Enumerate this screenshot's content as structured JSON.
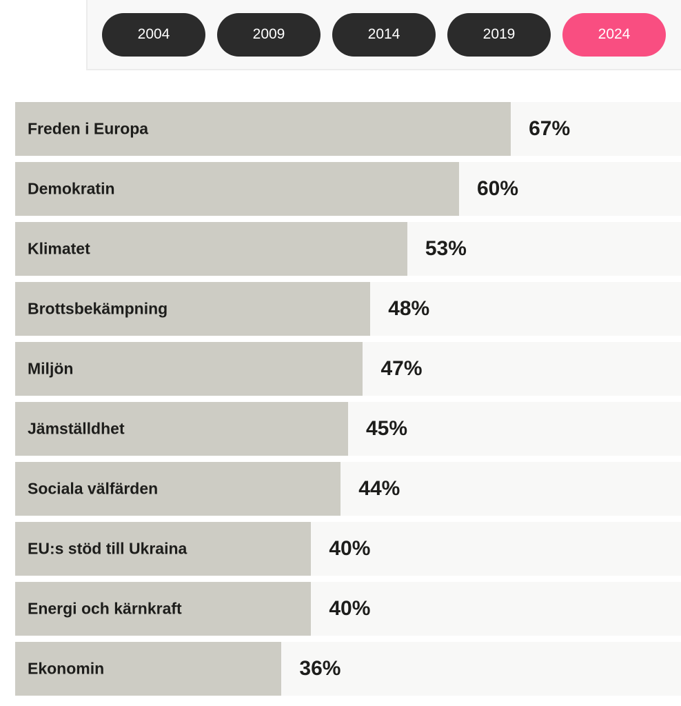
{
  "year_filter": {
    "options": [
      {
        "label": "2004",
        "selected": false
      },
      {
        "label": "2009",
        "selected": false
      },
      {
        "label": "2014",
        "selected": false
      },
      {
        "label": "2019",
        "selected": false
      },
      {
        "label": "2024",
        "selected": true
      }
    ]
  },
  "colors": {
    "pill_bg": "#2b2b2b",
    "pill_selected_bg": "#f94e81",
    "pill_text": "#ffffff",
    "panel_bg": "#f8f8f8",
    "panel_border": "#ececec",
    "bar_fill": "#cdccc4",
    "row_track_bg": "#f8f8f7",
    "text": "#1d1d1b"
  },
  "chart_data": {
    "type": "bar",
    "orientation": "horizontal",
    "title": "",
    "unit": "%",
    "categories": [
      "Freden i Europa",
      "Demokratin",
      "Klimatet",
      "Brottsbekämpning",
      "Miljön",
      "Jämställdhet",
      "Sociala välfärden",
      "EU:s stöd till Ukraina",
      "Energi och kärnkraft",
      "Ekonomin"
    ],
    "values": [
      67,
      60,
      53,
      48,
      47,
      45,
      44,
      40,
      40,
      36
    ],
    "value_labels": [
      "67%",
      "60%",
      "53%",
      "48%",
      "47%",
      "45%",
      "44%",
      "40%",
      "40%",
      "36%"
    ],
    "xlim": [
      0,
      90
    ],
    "grid": false,
    "legend": false
  }
}
